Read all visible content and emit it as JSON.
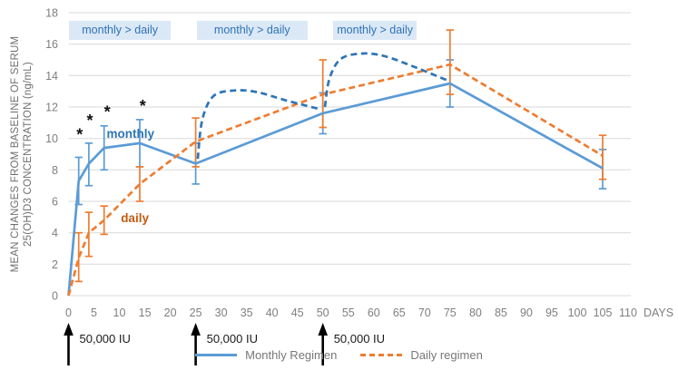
{
  "chart_data": {
    "type": "line",
    "title": "",
    "ylabel_lines": [
      "MEAN CHANGES FROM BASELINE OF SERUM",
      "25(OH)D3 CONCENTRATION (ng/mL)"
    ],
    "x_unit_label": "DAYS",
    "ylim": [
      0,
      18
    ],
    "y_tick_step": 2,
    "xlim": [
      0,
      110
    ],
    "x_tick_step": 5,
    "grid": true,
    "legend_position": "bottom-center",
    "x_days": [
      0,
      2,
      4,
      7,
      14,
      25,
      50,
      75,
      105
    ],
    "series": [
      {
        "name": "Monthly Regimen",
        "color": "#5B9BD5",
        "line_style": "solid",
        "values": [
          0,
          7.3,
          8.4,
          9.4,
          9.7,
          8.4,
          11.6,
          13.5,
          8.1
        ],
        "err_low": [
          null,
          5.8,
          7.0,
          8.0,
          8.2,
          7.1,
          10.3,
          12.0,
          6.8
        ],
        "err_high": [
          null,
          8.8,
          9.7,
          10.8,
          11.2,
          9.7,
          12.9,
          15.0,
          9.3
        ]
      },
      {
        "name": "Daily regimen",
        "color": "#ED7D31",
        "line_style": "dashed",
        "values": [
          0,
          2.4,
          4.0,
          4.8,
          7.1,
          9.8,
          12.8,
          14.7,
          8.9
        ],
        "err_low": [
          null,
          0.9,
          2.5,
          3.9,
          6.0,
          8.2,
          10.7,
          12.8,
          7.4
        ],
        "err_high": [
          null,
          4.0,
          5.3,
          5.7,
          8.2,
          11.3,
          15.0,
          16.9,
          10.2
        ]
      }
    ]
  },
  "annotations": {
    "comparison_boxes": [
      {
        "label": "monthly > daily",
        "day_start": 0.1,
        "day_end": 20.1
      },
      {
        "label": "monthly > daily",
        "day_start": 25.2,
        "day_end": 47.0
      },
      {
        "label": "monthly > daily",
        "day_start": 52.0,
        "day_end": 68.5
      }
    ],
    "series_labels": [
      {
        "text": "monthly",
        "day": 7.5,
        "value": 10.0,
        "color": "#2E75B6"
      },
      {
        "text": "daily",
        "day": 10.3,
        "value": 4.6,
        "color": "#C55A11"
      }
    ],
    "asterisks": [
      {
        "day": 2.2,
        "value": 9.9
      },
      {
        "day": 4.2,
        "value": 10.8
      },
      {
        "day": 7.6,
        "value": 11.35
      },
      {
        "day": 14.6,
        "value": 11.7
      }
    ],
    "peak_curves": {
      "color": "#2E75B6",
      "curves": [
        [
          [
            25.4,
            8.7
          ],
          [
            26.3,
            11.2
          ],
          [
            28.5,
            12.7
          ],
          [
            32.5,
            13.05
          ],
          [
            37,
            12.95
          ],
          [
            43,
            12.4
          ],
          [
            49.6,
            11.85
          ]
        ],
        [
          [
            50.4,
            12.0
          ],
          [
            51.3,
            13.8
          ],
          [
            53.5,
            15.05
          ],
          [
            57.5,
            15.4
          ],
          [
            62,
            15.25
          ],
          [
            68,
            14.55
          ],
          [
            74.4,
            13.7
          ]
        ]
      ]
    }
  },
  "doses": [
    {
      "day": 0,
      "label": "50,000 IU"
    },
    {
      "day": 25,
      "label": "50,000 IU"
    },
    {
      "day": 50,
      "label": "50,000 IU"
    }
  ],
  "legend": {
    "items": [
      {
        "label": "Monthly Regimen",
        "style": "solid",
        "color": "#5B9BD5"
      },
      {
        "label": "Daily regimen",
        "style": "dashed",
        "color": "#ED7D31"
      }
    ]
  },
  "colors": {
    "grid": "#D9D9D9",
    "axis_text": "#7F7F7F",
    "annotation_box_bg": "#DBE8F6",
    "annotation_text": "#2E74B5",
    "asterisk": "#111111",
    "dose_arrow": "#000000"
  }
}
